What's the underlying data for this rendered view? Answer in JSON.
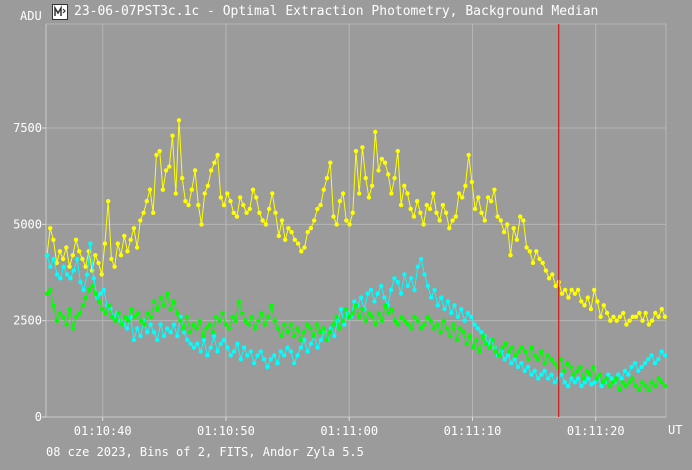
{
  "window": {
    "title": "23-06-07PST3c.1c - Optimal Extraction Photometry, Background Median",
    "icon": "chart-app-icon"
  },
  "footer": "08 cze 2023, Bins of 2, FITS, Andor Zyla 5.5",
  "chart_data": {
    "type": "scatter",
    "ylabel": "ADU",
    "xlabel": "UT",
    "ylim": [
      0,
      10200
    ],
    "yticks": [
      0,
      2500,
      5000,
      7500
    ],
    "xlim": [
      "01:10:35.4",
      "01:11:25.7"
    ],
    "xticks": [
      "01:10:40",
      "01:10:50",
      "01:11:00",
      "01:11:10",
      "01:11:20"
    ],
    "grid": true,
    "marker_line": {
      "time": "01:11:17.0",
      "color": "#dd0000"
    },
    "series": [
      {
        "color": "#ffff00",
        "values": [
          4200,
          4900,
          4600,
          4000,
          4300,
          4100,
          4400,
          3900,
          4200,
          4600,
          4300,
          4100,
          3900,
          4300,
          3800,
          4200,
          4000,
          3700,
          4500,
          5600,
          4100,
          3900,
          4500,
          4200,
          4700,
          4300,
          4600,
          4900,
          4400,
          5100,
          5300,
          5600,
          5900,
          5300,
          6800,
          6900,
          5900,
          6400,
          6500,
          7300,
          5800,
          7700,
          6200,
          5600,
          5500,
          5900,
          6400,
          5500,
          5000,
          5800,
          6000,
          6400,
          6600,
          6800,
          5700,
          5500,
          5800,
          5600,
          5300,
          5200,
          5700,
          5500,
          5300,
          5400,
          5900,
          5700,
          5300,
          5100,
          5000,
          5400,
          5800,
          5300,
          4700,
          5100,
          4600,
          4900,
          4800,
          4600,
          4500,
          4300,
          4400,
          4800,
          4900,
          5100,
          5400,
          5500,
          5900,
          6200,
          6600,
          5200,
          5000,
          5600,
          5800,
          5100,
          5000,
          5300,
          6900,
          5800,
          7000,
          6200,
          5700,
          6000,
          7400,
          6400,
          6700,
          6600,
          6300,
          5800,
          6200,
          6900,
          5500,
          6000,
          5800,
          5400,
          5200,
          5600,
          5300,
          5000,
          5500,
          5400,
          5800,
          5300,
          5100,
          5500,
          5300,
          4900,
          5100,
          5200,
          5800,
          5700,
          6000,
          6800,
          6100,
          5400,
          5700,
          5300,
          5100,
          5700,
          5600,
          5900,
          5200,
          5100,
          4800,
          5000,
          4200,
          4900,
          4600,
          5200,
          5100,
          4400,
          4300,
          4000,
          4300,
          4100,
          4000,
          3800,
          3600,
          3700,
          3400,
          3500,
          3200,
          3300,
          3100,
          3300,
          3200,
          3300,
          3000,
          2900,
          3100,
          2800,
          3300,
          3000,
          2600,
          2900,
          2700,
          2500,
          2600,
          2500,
          2600,
          2700,
          2400,
          2500,
          2600,
          2600,
          2700,
          2500,
          2700,
          2400,
          2500,
          2700,
          2600,
          2800,
          2600
        ]
      },
      {
        "color": "#00ffff",
        "values": [
          4200,
          3900,
          4100,
          3700,
          3600,
          3900,
          3700,
          3600,
          3800,
          4100,
          3500,
          3300,
          3700,
          4500,
          3600,
          3100,
          3200,
          3300,
          2900,
          2800,
          2600,
          2700,
          2500,
          2400,
          2300,
          2600,
          2000,
          2300,
          2100,
          2500,
          2200,
          2400,
          2200,
          2000,
          2400,
          2100,
          2300,
          2200,
          2400,
          2100,
          2600,
          2200,
          2000,
          1900,
          1800,
          1900,
          1700,
          2000,
          1600,
          1800,
          2100,
          1700,
          1900,
          2000,
          1800,
          1600,
          1700,
          1900,
          1500,
          1800,
          1600,
          1700,
          1400,
          1600,
          1700,
          1500,
          1300,
          1500,
          1600,
          1400,
          1700,
          1600,
          1800,
          1700,
          1400,
          1600,
          1800,
          2000,
          1700,
          1900,
          2100,
          1800,
          2000,
          2200,
          2000,
          2300,
          2100,
          2500,
          2800,
          2400,
          2700,
          2600,
          3000,
          2900,
          3100,
          2800,
          3200,
          3300,
          3000,
          3200,
          3400,
          3100,
          2900,
          3300,
          3600,
          3500,
          3200,
          3700,
          3400,
          3600,
          3300,
          3900,
          4100,
          3700,
          3400,
          3100,
          3300,
          2900,
          3100,
          2800,
          3000,
          2700,
          2900,
          2600,
          2800,
          2500,
          2700,
          2600,
          2400,
          2300,
          2200,
          2100,
          1900,
          2000,
          1800,
          1600,
          1700,
          1500,
          1600,
          1400,
          1500,
          1300,
          1400,
          1200,
          1300,
          1100,
          1200,
          1000,
          1100,
          1200,
          1000,
          1100,
          900,
          1000,
          1100,
          900,
          800,
          1000,
          900,
          1000,
          800,
          900,
          1000,
          850,
          900,
          1000,
          800,
          900,
          1100,
          1000,
          900,
          1100,
          1000,
          1200,
          1100,
          1300,
          1400,
          1200,
          1300,
          1400,
          1500,
          1600,
          1400,
          1500,
          1700,
          1600
        ]
      },
      {
        "color": "#00ff00",
        "values": [
          3200,
          3300,
          2900,
          2500,
          2700,
          2600,
          2400,
          2800,
          2300,
          2600,
          2700,
          2900,
          3100,
          3300,
          3400,
          3200,
          3000,
          2800,
          2700,
          2900,
          2600,
          2500,
          2700,
          2400,
          2600,
          2500,
          2800,
          2600,
          2700,
          2500,
          2400,
          2700,
          2600,
          3000,
          2800,
          3100,
          2900,
          3200,
          2800,
          3000,
          2700,
          2500,
          2300,
          2600,
          2200,
          2400,
          2300,
          2500,
          2100,
          2300,
          2400,
          2200,
          2600,
          2500,
          2700,
          2400,
          2300,
          2600,
          2500,
          3000,
          2700,
          2500,
          2400,
          2600,
          2300,
          2500,
          2700,
          2400,
          2600,
          2900,
          2500,
          2300,
          2100,
          2400,
          2200,
          2400,
          2100,
          2300,
          2000,
          2200,
          2400,
          2300,
          2100,
          2400,
          2200,
          2300,
          2000,
          2200,
          2400,
          2600,
          2300,
          2500,
          2800,
          2600,
          2700,
          2900,
          2600,
          2800,
          2500,
          2700,
          2600,
          2400,
          2700,
          2500,
          2900,
          2700,
          2800,
          2500,
          2400,
          2600,
          2500,
          2400,
          2300,
          2600,
          2500,
          2300,
          2400,
          2600,
          2500,
          2300,
          2400,
          2200,
          2500,
          2300,
          2100,
          2400,
          2000,
          2300,
          2200,
          1900,
          2100,
          1800,
          2000,
          1700,
          2100,
          1900,
          1800,
          2000,
          1700,
          1600,
          1800,
          1900,
          1700,
          1800,
          1600,
          1700,
          1800,
          1700,
          1500,
          1800,
          1600,
          1500,
          1700,
          1400,
          1600,
          1500,
          1400,
          1300,
          1500,
          1200,
          1400,
          1300,
          1100,
          1200,
          1300,
          1000,
          1200,
          1100,
          1300,
          1000,
          1100,
          900,
          1000,
          800,
          900,
          1000,
          700,
          900,
          800,
          900,
          1000,
          800,
          700,
          900,
          800,
          700,
          900,
          800,
          1000,
          900,
          800
        ]
      }
    ]
  }
}
